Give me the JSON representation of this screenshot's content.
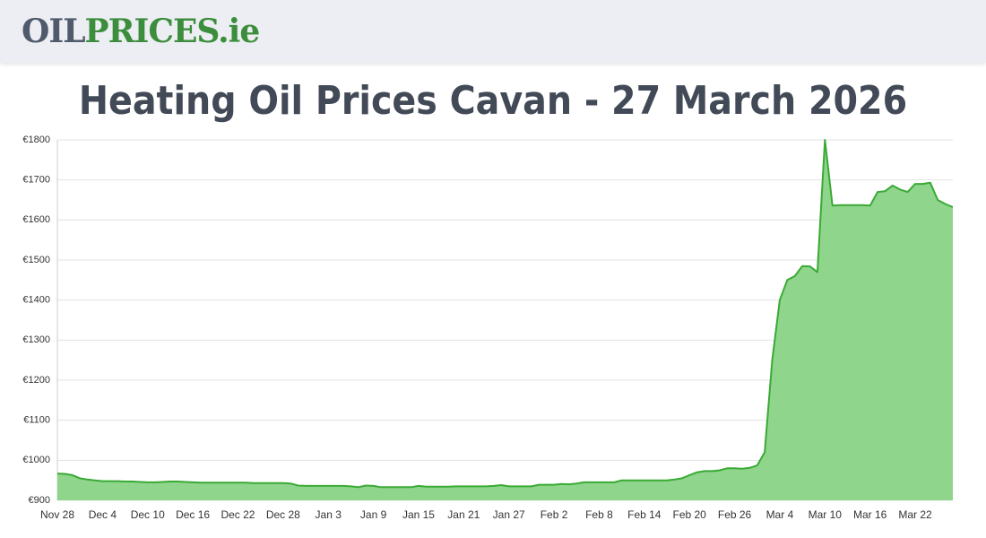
{
  "header": {
    "logo_part1": "OIL",
    "logo_part2": "PRICES.ie"
  },
  "chart_data": {
    "type": "area",
    "title": "Heating Oil Prices Cavan - 27 March 2026",
    "categories": [
      "Nov 28",
      null,
      null,
      null,
      null,
      null,
      "Dec 4",
      null,
      null,
      null,
      null,
      null,
      "Dec 10",
      null,
      null,
      null,
      null,
      null,
      "Dec 16",
      null,
      null,
      null,
      null,
      null,
      "Dec 22",
      null,
      null,
      null,
      null,
      null,
      "Dec 28",
      null,
      null,
      null,
      null,
      null,
      "Jan 3",
      null,
      null,
      null,
      null,
      null,
      "Jan 9",
      null,
      null,
      null,
      null,
      null,
      "Jan 15",
      null,
      null,
      null,
      null,
      null,
      "Jan 21",
      null,
      null,
      null,
      null,
      null,
      "Jan 27",
      null,
      null,
      null,
      null,
      null,
      "Feb 2",
      null,
      null,
      null,
      null,
      null,
      "Feb 8",
      null,
      null,
      null,
      null,
      null,
      "Feb 14",
      null,
      null,
      null,
      null,
      null,
      "Feb 20",
      null,
      null,
      null,
      null,
      null,
      "Feb 26",
      null,
      null,
      null,
      null,
      null,
      "Mar 4",
      null,
      null,
      null,
      null,
      null,
      "Mar 10",
      null,
      null,
      null,
      null,
      null,
      "Mar 16",
      null,
      null,
      null,
      null,
      null,
      "Mar 22",
      null,
      null,
      null,
      null,
      null
    ],
    "values": [
      967,
      966,
      963,
      955,
      952,
      950,
      948,
      948,
      948,
      947,
      947,
      946,
      945,
      945,
      946,
      947,
      947,
      946,
      945,
      944,
      944,
      944,
      944,
      944,
      944,
      944,
      943,
      943,
      943,
      943,
      943,
      942,
      937,
      936,
      936,
      936,
      936,
      936,
      936,
      935,
      933,
      937,
      936,
      933,
      933,
      933,
      933,
      933,
      936,
      934,
      934,
      934,
      934,
      935,
      935,
      935,
      935,
      935,
      936,
      938,
      935,
      935,
      935,
      935,
      939,
      939,
      939,
      941,
      940,
      942,
      945,
      945,
      945,
      945,
      945,
      950,
      950,
      950,
      950,
      950,
      950,
      950,
      952,
      955,
      963,
      970,
      973,
      973,
      975,
      980,
      980,
      979,
      981,
      987,
      1020,
      1250,
      1400,
      1450,
      1460,
      1485,
      1484,
      1470,
      1800,
      1636,
      1637,
      1637,
      1637,
      1637,
      1636,
      1670,
      1672,
      1686,
      1676,
      1670,
      1690,
      1690,
      1693,
      1650,
      1640,
      1632
    ],
    "color": "#3aaa35",
    "fill_color": "#8fd58c",
    "ylim": [
      900,
      1800
    ],
    "yticks": [
      {
        "value": 900,
        "label": "€900"
      },
      {
        "value": 1000,
        "label": "€1000"
      },
      {
        "value": 1100,
        "label": "€1100"
      },
      {
        "value": 1200,
        "label": "€1200"
      },
      {
        "value": 1300,
        "label": "€1300"
      },
      {
        "value": 1400,
        "label": "€1400"
      },
      {
        "value": 1500,
        "label": "€1500"
      },
      {
        "value": 1600,
        "label": "€1600"
      },
      {
        "value": 1700,
        "label": "€1700"
      },
      {
        "value": 1800,
        "label": "€1800"
      }
    ],
    "grid": true
  }
}
